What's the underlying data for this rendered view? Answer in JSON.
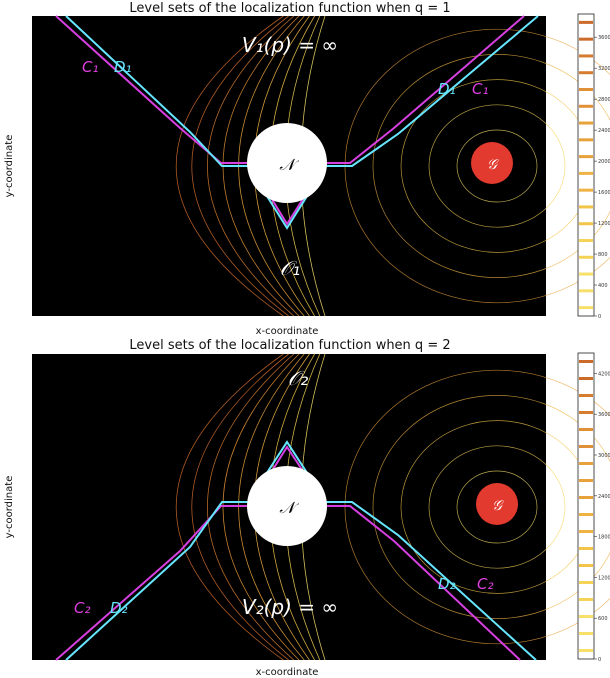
{
  "chart_data": [
    {
      "type": "contour",
      "title": "Level sets of the localization function when q = 1",
      "xlabel": "x-coordinate",
      "ylabel": "y-coordinate",
      "colorbar": {
        "range": [
          0,
          3900
        ],
        "ticks": [
          "0",
          "400",
          "800",
          "1200",
          "1600",
          "2000",
          "2400",
          "2800",
          "3200",
          "3600"
        ],
        "cmap": "YlOrBr"
      },
      "annotations": {
        "value_function": "V₁(p) = ∞",
        "obstacle": "𝒩",
        "goal": "𝒢",
        "region": "𝒪₁",
        "curve_c_left": "C₁",
        "curve_d_left": "D₁",
        "curve_c_right": "C₁",
        "curve_d_right": "D₁"
      },
      "colors": {
        "background": "#000000",
        "obstacle": "#ffffff",
        "goal": "#e23a2e",
        "c_curve": "#d63fe0",
        "d_curve": "#66e6ff",
        "contour": "#f0d060"
      }
    },
    {
      "type": "contour",
      "title": "Level sets of the localization function when q = 2",
      "xlabel": "x-coordinate",
      "ylabel": "y-coordinate",
      "colorbar": {
        "range": [
          0,
          4500
        ],
        "ticks": [
          "0",
          "600",
          "1200",
          "1800",
          "2400",
          "3000",
          "3600",
          "4200"
        ],
        "cmap": "YlOrBr"
      },
      "annotations": {
        "value_function": "V₂(p) = ∞",
        "obstacle": "𝒩",
        "goal": "𝒢",
        "region": "𝒪₂",
        "curve_c_left": "C₂",
        "curve_d_left": "D₂",
        "curve_c_right": "C₂",
        "curve_d_right": "D₂"
      },
      "colors": {
        "background": "#000000",
        "obstacle": "#ffffff",
        "goal": "#e23a2e",
        "c_curve": "#d63fe0",
        "d_curve": "#66e6ff",
        "contour": "#f0d060"
      }
    }
  ]
}
